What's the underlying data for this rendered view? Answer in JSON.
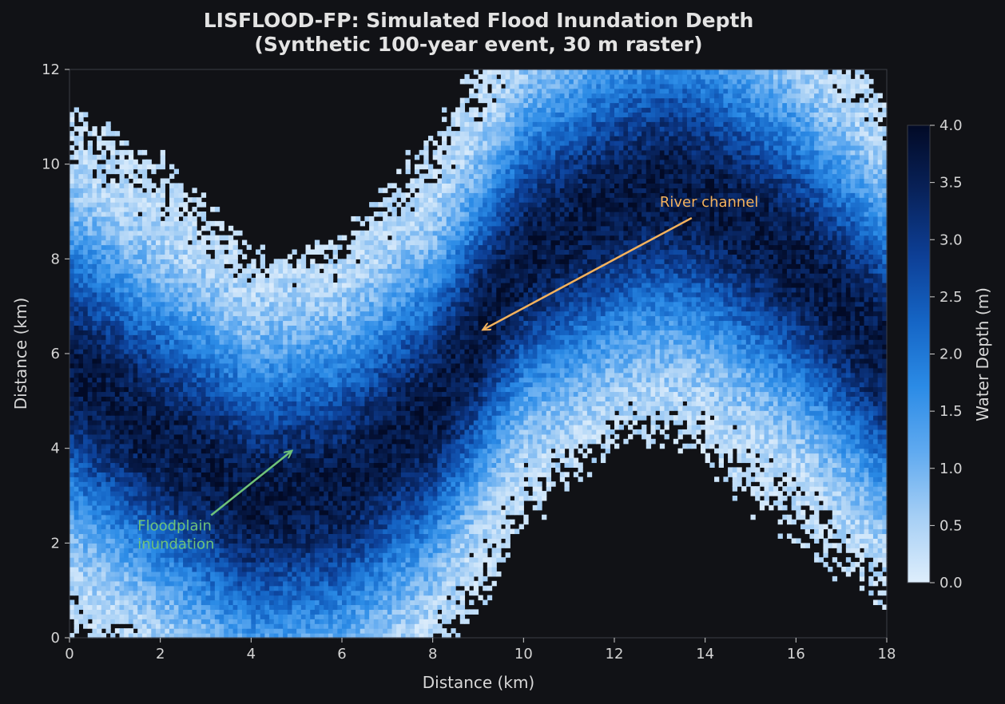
{
  "chart_data": {
    "type": "heatmap",
    "title_line1": "LISFLOOD-FP: Simulated Flood Inundation Depth",
    "title_line2": "(Synthetic 100-year event, 30 m raster)",
    "xlabel": "Distance (km)",
    "ylabel": "Distance (km)",
    "xlim": [
      0,
      18
    ],
    "ylim": [
      0,
      12
    ],
    "xticks": [
      0,
      2,
      4,
      6,
      8,
      10,
      12,
      14,
      16,
      18
    ],
    "yticks": [
      0,
      2,
      4,
      6,
      8,
      10,
      12
    ],
    "grid": false,
    "raster_resolution_m": 30,
    "channel_centerline": {
      "description": "sinusoidal meandering river channel",
      "x_km": [
        0,
        2,
        4,
        6,
        8,
        9,
        10,
        12,
        13,
        14,
        16,
        18
      ],
      "y_km": [
        5.6,
        4.2,
        2.9,
        3.2,
        4.8,
        6.4,
        8.0,
        9.2,
        9.5,
        9.3,
        8.0,
        6.0
      ]
    },
    "colorbar": {
      "label": "Water Depth (m)",
      "range": [
        0.0,
        4.0
      ],
      "ticks": [
        "0.0",
        "0.5",
        "1.0",
        "1.5",
        "2.0",
        "2.5",
        "3.0",
        "3.5",
        "4.0"
      ],
      "colormap": [
        "#deeefc",
        "#a6cff5",
        "#60aaf0",
        "#2b8be6",
        "#1565c5",
        "#0d3f96",
        "#08225a",
        "#020a26"
      ]
    },
    "annotations": [
      {
        "text": "River channel",
        "text_x": 13.0,
        "text_y": 9.1,
        "arrow_to_x": 9.1,
        "arrow_to_y": 6.5,
        "color": "#f4b25d"
      },
      {
        "line1": "Floodplain",
        "line2": "inundation",
        "text_x": 1.5,
        "text_y": 2.3,
        "arrow_to_x": 4.9,
        "arrow_to_y": 3.95,
        "color": "#6fc279"
      }
    ]
  }
}
